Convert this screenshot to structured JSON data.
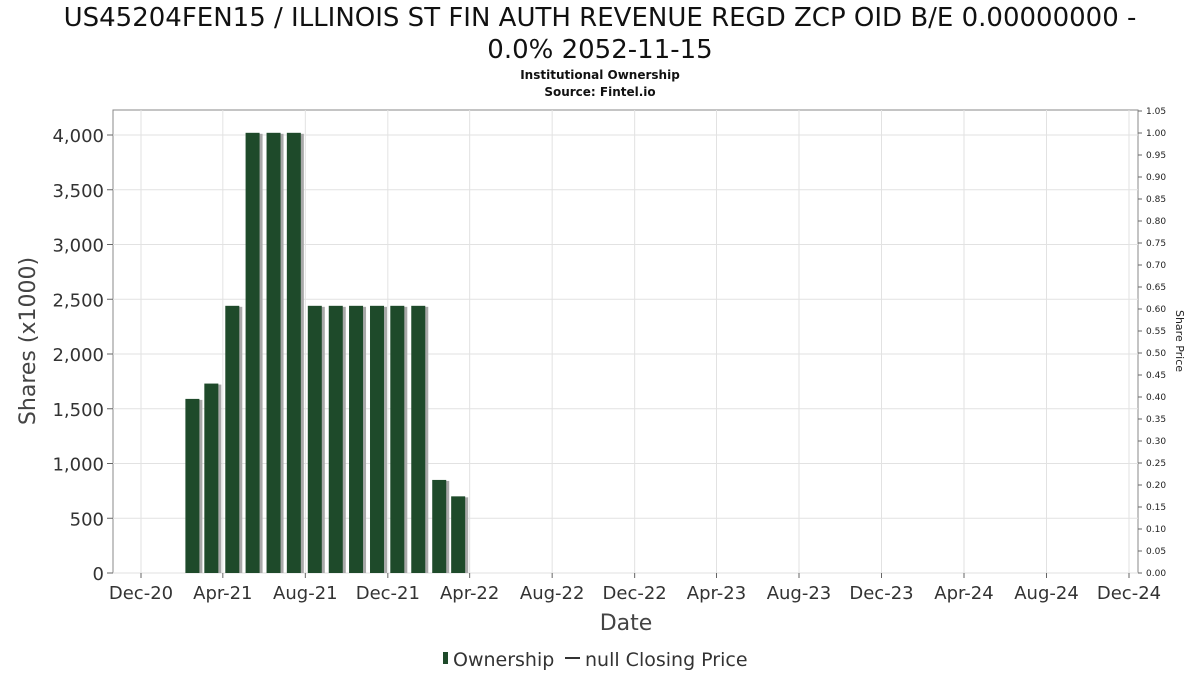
{
  "title_line1": "US45204FEN15 / ILLINOIS ST FIN AUTH REVENUE REGD ZCP OID B/E 0.00000000 -",
  "title_line2": "0.0% 2052-11-15",
  "subtitle": "Institutional Ownership",
  "source": "Source: Fintel.io",
  "chart_data": {
    "type": "bar",
    "xlabel": "Date",
    "ylabel": "Shares (x1000)",
    "y2label": "Share Price",
    "x_ticks": [
      "Dec-20",
      "Apr-21",
      "Aug-21",
      "Dec-21",
      "Apr-22",
      "Aug-22",
      "Dec-22",
      "Apr-23",
      "Aug-23",
      "Dec-23",
      "Apr-24",
      "Aug-24",
      "Dec-24"
    ],
    "y_ticks": [
      "0",
      "500",
      "1,000",
      "1,500",
      "2,000",
      "2,500",
      "3,000",
      "3,500",
      "4,000"
    ],
    "ylim": [
      0,
      4200
    ],
    "y2_ticks": [
      "0.00",
      "0.05",
      "0.10",
      "0.15",
      "0.20",
      "0.25",
      "0.30",
      "0.35",
      "0.40",
      "0.45",
      "0.50",
      "0.55",
      "0.60",
      "0.65",
      "0.70",
      "0.75",
      "0.80",
      "0.85",
      "0.90",
      "0.95",
      "1.00",
      "1.05"
    ],
    "y2lim": [
      0,
      1.05
    ],
    "grid": true,
    "series": [
      {
        "name": "Ownership",
        "color": "#1e4a2a",
        "x": [
          "2021-02-15",
          "2021-03-15",
          "2021-04-15",
          "2021-05-15",
          "2021-06-15",
          "2021-07-15",
          "2021-08-15",
          "2021-09-15",
          "2021-10-15",
          "2021-11-15",
          "2021-12-15",
          "2022-01-15",
          "2022-02-15",
          "2022-03-15"
        ],
        "values": [
          1590,
          1730,
          2440,
          4020,
          4020,
          4020,
          2440,
          2440,
          2440,
          2440,
          2440,
          2440,
          850,
          700
        ]
      },
      {
        "name": "null Closing Price",
        "color": "#333333",
        "x": [],
        "values": []
      }
    ],
    "legend": [
      "Ownership",
      "null Closing Price"
    ],
    "legend_position": "bottom-center"
  }
}
